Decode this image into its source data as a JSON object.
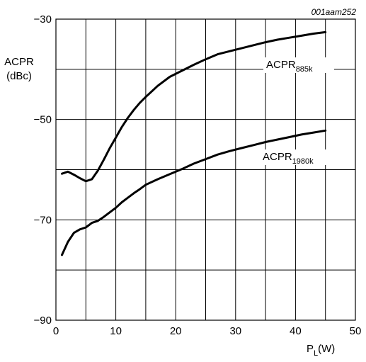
{
  "chart_data": {
    "type": "line",
    "reference": "001aam252",
    "xlabel": {
      "main": "P",
      "sub": "L",
      "unit": "(W)"
    },
    "ylabel": {
      "line1": "ACPR",
      "line2": "(dBc)"
    },
    "xlim": [
      0,
      50
    ],
    "ylim": [
      -90,
      -30
    ],
    "xticks": [
      0,
      10,
      20,
      30,
      40,
      50
    ],
    "yticks": [
      -90,
      -70,
      -50,
      -30
    ],
    "ytick_labels": [
      "−90",
      "−70",
      "−50",
      "−30"
    ],
    "x_grid_step": 5,
    "y_grid_step": 10,
    "grid": true,
    "series": [
      {
        "name": "ACPR885k",
        "label_main": "ACPR",
        "label_sub": "885k",
        "x": [
          1,
          2,
          3,
          4,
          5,
          6,
          7,
          8,
          9,
          10,
          11,
          12,
          13,
          14,
          15,
          17,
          19,
          21,
          23,
          25,
          27,
          29,
          31,
          33,
          35,
          37,
          39,
          41,
          43,
          45
        ],
        "y": [
          -60.8,
          -60.4,
          -61.0,
          -61.7,
          -62.3,
          -61.9,
          -60.2,
          -58.0,
          -55.7,
          -53.6,
          -51.5,
          -49.7,
          -48.1,
          -46.7,
          -45.5,
          -43.3,
          -41.5,
          -40.3,
          -39.1,
          -38.0,
          -37.0,
          -36.4,
          -35.8,
          -35.2,
          -34.6,
          -34.1,
          -33.7,
          -33.3,
          -32.9,
          -32.6
        ]
      },
      {
        "name": "ACPR1980k",
        "label_main": "ACPR",
        "label_sub": "1980k",
        "x": [
          1,
          2,
          3,
          4,
          5,
          6,
          7,
          8,
          9,
          10,
          11,
          12,
          13,
          14,
          15,
          17,
          19,
          21,
          23,
          25,
          27,
          29,
          31,
          33,
          35,
          37,
          39,
          41,
          43,
          45
        ],
        "y": [
          -77.0,
          -74.4,
          -72.6,
          -71.9,
          -71.5,
          -70.6,
          -70.2,
          -69.4,
          -68.5,
          -67.6,
          -66.5,
          -65.6,
          -64.7,
          -63.9,
          -63.0,
          -61.9,
          -60.9,
          -59.9,
          -58.8,
          -57.9,
          -57.0,
          -56.3,
          -55.7,
          -55.1,
          -54.5,
          -54.0,
          -53.5,
          -53.0,
          -52.6,
          -52.2
        ]
      }
    ]
  }
}
